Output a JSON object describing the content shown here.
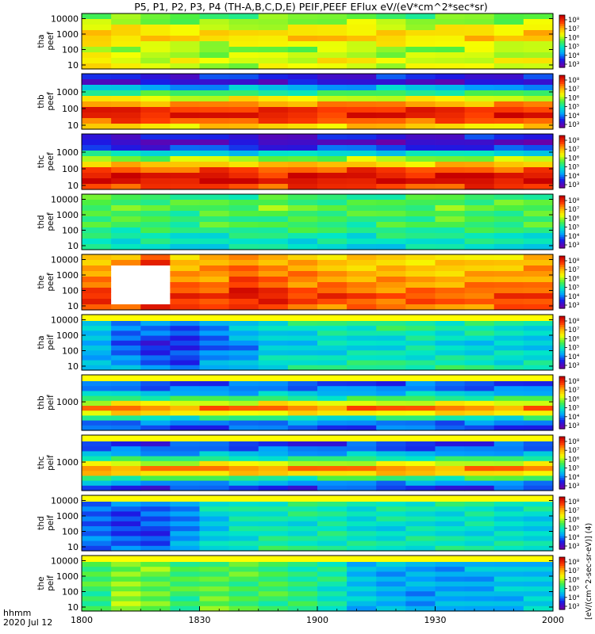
{
  "title": "P5, P1, P2, P3, P4 (TH-A,B,C,D,E) PEIF,PEEF EFlux eV/(eV*cm^2*sec*sr)",
  "footer": {
    "time_format_label": "hhmm",
    "date_label": "2020 Jul 12"
  },
  "colorbar_unit_label": "[eV/(cm^2-sec-sr-eV)] (4)",
  "colors": {
    "colormap": [
      "#6a00a8",
      "#1a1ae6",
      "#00a0ff",
      "#00e6c8",
      "#4cf040",
      "#f5ff00",
      "#ffb400",
      "#ff3c00",
      "#c80000"
    ],
    "gap_fill": "#ffff00",
    "frame": "#000000"
  },
  "chart_data": {
    "type": "heatmap",
    "x_axis": {
      "range": [
        1800,
        2000
      ],
      "tick_labels": [
        "1800",
        "1830",
        "1900",
        "1930",
        "2000"
      ],
      "label": "hhmm"
    },
    "panels": [
      {
        "probe": "tha",
        "product": "peef",
        "label_line1": "tha",
        "label_line2": "peef",
        "y_tick_labels": [
          "10000",
          "1000",
          "100",
          "10"
        ],
        "colorbar_tick_labels": [
          "10^8",
          "10^7",
          "10^6",
          "10^5",
          "10^4",
          "10^3"
        ],
        "profile": [
          0.5,
          0.55,
          0.62,
          0.68,
          0.7,
          0.62,
          0.55,
          0.58,
          0.62,
          0.6
        ],
        "time_mod": [
          0.04,
          0.02,
          0.0,
          0.0,
          -0.02,
          -0.02,
          0.0,
          0.0,
          0.02,
          0.02,
          0.0,
          -0.02,
          0.0,
          0.02,
          0.0,
          0.03
        ],
        "gap_bar": false,
        "white_bins": []
      },
      {
        "probe": "thb",
        "product": "peef",
        "label_line1": "thb",
        "label_line2": "peef",
        "y_tick_labels": [
          "1000",
          "100",
          "10"
        ],
        "colorbar_tick_labels": [
          "10^8",
          "10^7",
          "10^6",
          "10^5",
          "10^4",
          "10^3"
        ],
        "profile": [
          0.12,
          0.08,
          0.28,
          0.45,
          0.62,
          0.78,
          0.9,
          0.94,
          0.85,
          0.7
        ],
        "time_mod": [
          0.0,
          0.02,
          0.0,
          -0.02,
          0.0,
          0.02,
          0.0,
          0.0,
          -0.02,
          0.0,
          0.02,
          0.0,
          0.0,
          -0.02,
          0.0,
          0.0
        ],
        "gap_bar": false,
        "white_bins": []
      },
      {
        "probe": "thc",
        "product": "peef",
        "label_line1": "thc",
        "label_line2": "peef",
        "y_tick_labels": [
          "1000",
          "100",
          "10"
        ],
        "colorbar_tick_labels": [
          "10^8",
          "10^7",
          "10^6",
          "10^5",
          "10^4",
          "10^3"
        ],
        "profile": [
          0.1,
          0.05,
          0.15,
          0.35,
          0.55,
          0.72,
          0.86,
          0.95,
          0.97,
          0.88
        ],
        "time_mod": [
          0.02,
          0.0,
          -0.02,
          0.0,
          0.02,
          0.0,
          -0.03,
          0.0,
          0.0,
          0.02,
          0.0,
          -0.02,
          0.0,
          0.02,
          0.0,
          0.0
        ],
        "gap_bar": false,
        "white_bins": []
      },
      {
        "probe": "thd",
        "product": "peef",
        "label_line1": "thd",
        "label_line2": "peef",
        "y_tick_labels": [
          "10000",
          "1000",
          "100",
          "10"
        ],
        "colorbar_tick_labels": [
          "10^8",
          "10^7",
          "10^6",
          "10^5",
          "10^4",
          "10^3"
        ],
        "profile": [
          0.45,
          0.48,
          0.5,
          0.48,
          0.46,
          0.47,
          0.44,
          0.4,
          0.38,
          0.36
        ],
        "time_mod": [
          0.02,
          0.0,
          0.0,
          -0.02,
          0.0,
          0.0,
          0.02,
          0.0,
          0.0,
          -0.02,
          0.0,
          0.0,
          0.02,
          0.0,
          0.0,
          0.0
        ],
        "gap_bar": false,
        "white_bins": []
      },
      {
        "probe": "the",
        "product": "peef",
        "label_line1": "the",
        "label_line2": "peef",
        "y_tick_labels": [
          "10000",
          "1000",
          "100",
          "10"
        ],
        "colorbar_tick_labels": [
          "10^8",
          "10^7",
          "10^6",
          "10^5",
          "10^4",
          "10^3"
        ],
        "profile": [
          0.72,
          0.74,
          0.76,
          0.78,
          0.8,
          0.82,
          0.86,
          0.9,
          0.88,
          0.84
        ],
        "time_mod": [
          0.0,
          0.0,
          0.16,
          0.0,
          0.0,
          0.06,
          0.04,
          0.0,
          -0.02,
          -0.03,
          -0.04,
          -0.05,
          -0.05,
          -0.04,
          -0.02,
          0.0
        ],
        "gap_bar": false,
        "white_bins": [
          1,
          2
        ]
      },
      {
        "probe": "tha",
        "product": "peif",
        "label_line1": "tha",
        "label_line2": "peif",
        "y_tick_labels": [
          "10000",
          "1000",
          "100",
          "10"
        ],
        "colorbar_tick_labels": [
          "10^8",
          "10^7",
          "10^6",
          "10^5",
          "10^4",
          "10^3"
        ],
        "profile": [
          0.38,
          0.36,
          0.34,
          0.32,
          0.3,
          0.3,
          0.32,
          0.34,
          0.36,
          0.38
        ],
        "time_mod": [
          -0.04,
          -0.12,
          -0.16,
          -0.18,
          -0.1,
          -0.06,
          0.0,
          0.02,
          0.04,
          0.04,
          0.06,
          0.06,
          0.04,
          0.04,
          0.02,
          0.02
        ],
        "gap_bar": true,
        "white_bins": []
      },
      {
        "probe": "thb",
        "product": "peif",
        "label_line1": "thb",
        "label_line2": "peif",
        "y_tick_labels": [
          "1000"
        ],
        "colorbar_tick_labels": [
          "10^8",
          "10^7",
          "10^6",
          "10^5",
          "10^4",
          "10^3"
        ],
        "profile": [
          0.18,
          0.22,
          0.3,
          0.45,
          0.62,
          0.82,
          0.66,
          0.4,
          0.22,
          0.18
        ],
        "time_mod": [
          0.0,
          0.02,
          0.0,
          -0.02,
          0.0,
          0.0,
          0.02,
          0.0,
          -0.02,
          0.0,
          0.0,
          0.02,
          0.0,
          0.0,
          -0.02,
          0.0
        ],
        "gap_bar": true,
        "white_bins": []
      },
      {
        "probe": "thc",
        "product": "peif",
        "label_line1": "thc",
        "label_line2": "peif",
        "y_tick_labels": [
          "1000"
        ],
        "colorbar_tick_labels": [
          "10^8",
          "10^7",
          "10^6",
          "10^5",
          "10^4",
          "10^3"
        ],
        "profile": [
          0.15,
          0.2,
          0.28,
          0.42,
          0.6,
          0.8,
          0.7,
          0.45,
          0.25,
          0.15
        ],
        "time_mod": [
          0.02,
          0.0,
          -0.02,
          0.0,
          0.02,
          0.0,
          0.0,
          -0.02,
          0.0,
          0.02,
          0.0,
          0.0,
          -0.02,
          0.0,
          0.02,
          0.0
        ],
        "gap_bar": true,
        "white_bins": []
      },
      {
        "probe": "thd",
        "product": "peif",
        "label_line1": "thd",
        "label_line2": "peif",
        "y_tick_labels": [
          "10000",
          "1000",
          "100",
          "10"
        ],
        "colorbar_tick_labels": [
          "10^8",
          "10^7",
          "10^6",
          "10^5",
          "10^4",
          "10^3"
        ],
        "profile": [
          0.36,
          0.35,
          0.34,
          0.33,
          0.32,
          0.32,
          0.33,
          0.34,
          0.35,
          0.36
        ],
        "time_mod": [
          -0.14,
          -0.16,
          -0.16,
          -0.1,
          0.0,
          0.04,
          0.06,
          0.06,
          0.06,
          0.04,
          0.04,
          0.04,
          0.04,
          0.04,
          0.02,
          0.02
        ],
        "gap_bar": true,
        "white_bins": []
      },
      {
        "probe": "the",
        "product": "peif",
        "label_line1": "the",
        "label_line2": "peif",
        "y_tick_labels": [
          "10000",
          "1000",
          "100",
          "10"
        ],
        "colorbar_tick_labels": [
          "10^8",
          "10^7",
          "10^6",
          "10^5",
          "10^4",
          "10^3"
        ],
        "profile": [
          0.46,
          0.46,
          0.46,
          0.46,
          0.46,
          0.46,
          0.46,
          0.46,
          0.46,
          0.46
        ],
        "time_mod": [
          0.0,
          0.08,
          0.06,
          0.0,
          0.04,
          0.02,
          0.0,
          -0.02,
          -0.06,
          -0.16,
          -0.18,
          -0.2,
          -0.2,
          -0.18,
          -0.16,
          -0.14
        ],
        "gap_bar": true,
        "white_bins": []
      }
    ]
  }
}
